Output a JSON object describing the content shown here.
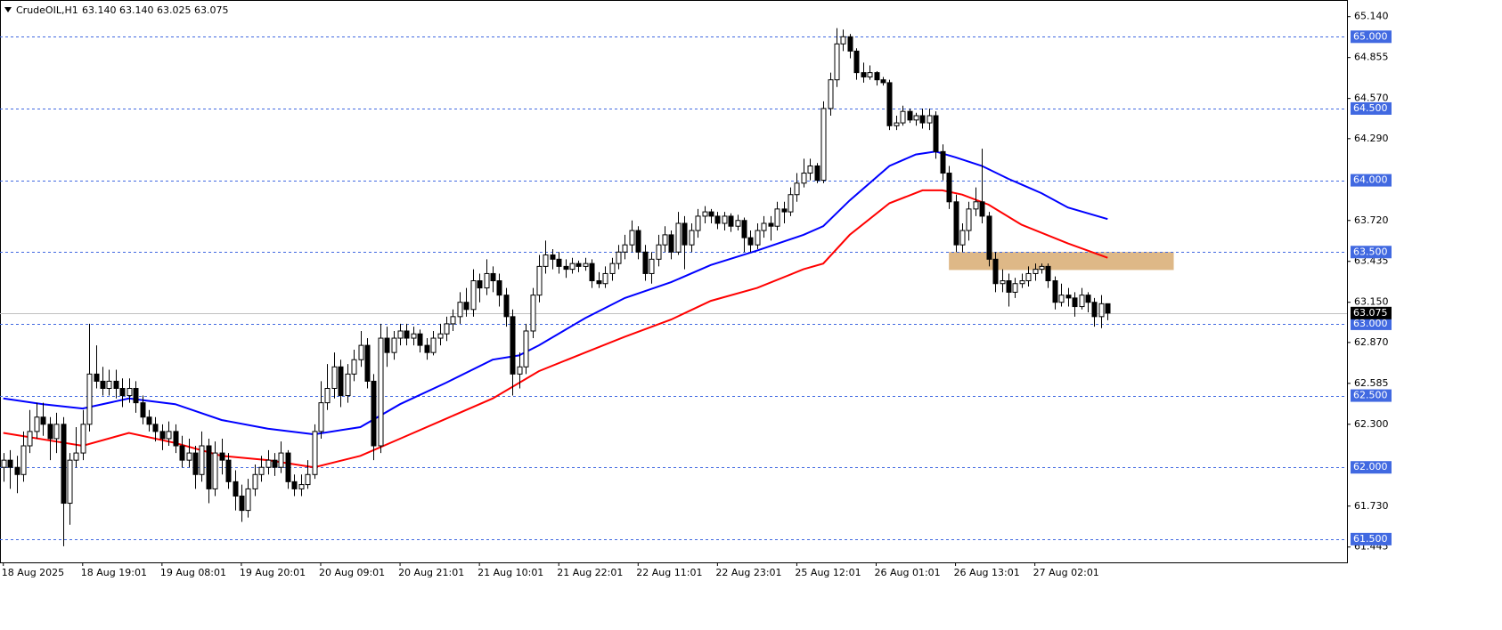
{
  "chart_data": {
    "type": "candlestick",
    "title": "CrudeOIL,H1",
    "subtitle": "63.140 63.140 63.025 63.075",
    "candles": [
      [
        62.0,
        62.1,
        61.9,
        62.05
      ],
      [
        62.05,
        62.12,
        61.85,
        62.0
      ],
      [
        62.0,
        62.08,
        61.82,
        61.95
      ],
      [
        61.95,
        62.25,
        61.9,
        62.15
      ],
      [
        62.15,
        62.4,
        62.1,
        62.25
      ],
      [
        62.25,
        62.45,
        62.2,
        62.35
      ],
      [
        62.35,
        62.45,
        62.22,
        62.3
      ],
      [
        62.3,
        62.35,
        62.05,
        62.2
      ],
      [
        62.2,
        62.38,
        62.1,
        62.3
      ],
      [
        62.3,
        62.35,
        61.45,
        61.75
      ],
      [
        61.75,
        62.1,
        61.6,
        62.05
      ],
      [
        62.05,
        62.28,
        62.0,
        62.1
      ],
      [
        62.1,
        62.4,
        62.05,
        62.3
      ],
      [
        62.3,
        63.0,
        62.25,
        62.65
      ],
      [
        62.65,
        62.85,
        62.55,
        62.6
      ],
      [
        62.6,
        62.7,
        62.5,
        62.55
      ],
      [
        62.55,
        62.68,
        62.5,
        62.6
      ],
      [
        62.6,
        62.68,
        62.48,
        62.55
      ],
      [
        62.55,
        62.62,
        62.42,
        62.5
      ],
      [
        62.5,
        62.62,
        62.45,
        62.55
      ],
      [
        62.55,
        62.6,
        62.38,
        62.45
      ],
      [
        62.45,
        62.5,
        62.3,
        62.35
      ],
      [
        62.35,
        62.4,
        62.25,
        62.3
      ],
      [
        62.3,
        62.35,
        62.18,
        62.25
      ],
      [
        62.25,
        62.3,
        62.12,
        62.2
      ],
      [
        62.2,
        62.32,
        62.15,
        62.25
      ],
      [
        62.25,
        62.3,
        62.1,
        62.15
      ],
      [
        62.15,
        62.22,
        62.0,
        62.05
      ],
      [
        62.05,
        62.2,
        62.0,
        62.1
      ],
      [
        62.1,
        62.15,
        61.85,
        61.95
      ],
      [
        61.95,
        62.25,
        61.9,
        62.15
      ],
      [
        62.15,
        62.2,
        61.75,
        61.85
      ],
      [
        61.85,
        62.18,
        61.8,
        62.1
      ],
      [
        62.1,
        62.2,
        61.95,
        62.05
      ],
      [
        62.05,
        62.1,
        61.85,
        61.9
      ],
      [
        61.9,
        61.98,
        61.7,
        61.8
      ],
      [
        61.8,
        61.88,
        61.62,
        61.7
      ],
      [
        61.7,
        61.92,
        61.65,
        61.85
      ],
      [
        61.85,
        62.02,
        61.8,
        61.95
      ],
      [
        61.95,
        62.08,
        61.9,
        62.0
      ],
      [
        62.0,
        62.12,
        61.95,
        62.05
      ],
      [
        62.05,
        62.1,
        61.94,
        62.0
      ],
      [
        62.0,
        62.18,
        61.96,
        62.1
      ],
      [
        62.1,
        62.12,
        61.85,
        61.9
      ],
      [
        61.9,
        61.95,
        61.8,
        61.85
      ],
      [
        61.85,
        61.95,
        61.8,
        61.88
      ],
      [
        61.88,
        62.05,
        61.85,
        61.95
      ],
      [
        61.95,
        62.3,
        61.92,
        62.25
      ],
      [
        62.25,
        62.6,
        62.2,
        62.45
      ],
      [
        62.45,
        62.72,
        62.4,
        62.55
      ],
      [
        62.55,
        62.8,
        62.48,
        62.7
      ],
      [
        62.7,
        62.75,
        62.42,
        62.5
      ],
      [
        62.5,
        62.72,
        62.45,
        62.65
      ],
      [
        62.65,
        62.82,
        62.6,
        62.75
      ],
      [
        62.75,
        62.95,
        62.7,
        62.85
      ],
      [
        62.85,
        62.9,
        62.55,
        62.6
      ],
      [
        62.6,
        62.65,
        62.05,
        62.15
      ],
      [
        62.15,
        63.0,
        62.1,
        62.9
      ],
      [
        62.9,
        62.98,
        62.7,
        62.8
      ],
      [
        62.8,
        62.95,
        62.75,
        62.9
      ],
      [
        62.9,
        63.0,
        62.85,
        62.95
      ],
      [
        62.95,
        63.0,
        62.85,
        62.9
      ],
      [
        62.9,
        62.98,
        62.85,
        62.93
      ],
      [
        62.93,
        62.96,
        62.8,
        62.85
      ],
      [
        62.85,
        62.9,
        62.75,
        62.8
      ],
      [
        62.8,
        62.95,
        62.78,
        62.9
      ],
      [
        62.9,
        63.0,
        62.85,
        62.93
      ],
      [
        62.93,
        63.05,
        62.88,
        63.0
      ],
      [
        63.0,
        63.1,
        62.95,
        63.05
      ],
      [
        63.05,
        63.22,
        63.0,
        63.15
      ],
      [
        63.15,
        63.25,
        63.05,
        63.1
      ],
      [
        63.1,
        63.38,
        63.05,
        63.3
      ],
      [
        63.3,
        63.35,
        63.15,
        63.25
      ],
      [
        63.25,
        63.45,
        63.2,
        63.35
      ],
      [
        63.35,
        63.4,
        63.22,
        63.3
      ],
      [
        63.3,
        63.35,
        63.12,
        63.2
      ],
      [
        63.2,
        63.25,
        62.98,
        63.05
      ],
      [
        63.05,
        63.1,
        62.5,
        62.65
      ],
      [
        62.65,
        62.8,
        62.55,
        62.7
      ],
      [
        62.7,
        63.0,
        62.65,
        62.95
      ],
      [
        62.95,
        63.25,
        62.9,
        63.2
      ],
      [
        63.2,
        63.48,
        63.15,
        63.4
      ],
      [
        63.4,
        63.58,
        63.35,
        63.48
      ],
      [
        63.48,
        63.52,
        63.38,
        63.45
      ],
      [
        63.45,
        63.5,
        63.35,
        63.4
      ],
      [
        63.4,
        63.45,
        63.32,
        63.38
      ],
      [
        63.38,
        63.46,
        63.35,
        63.42
      ],
      [
        63.42,
        63.44,
        63.36,
        63.4
      ],
      [
        63.4,
        63.46,
        63.37,
        63.42
      ],
      [
        63.42,
        63.45,
        63.25,
        63.3
      ],
      [
        63.3,
        63.36,
        63.25,
        63.28
      ],
      [
        63.28,
        63.4,
        63.25,
        63.35
      ],
      [
        63.35,
        63.46,
        63.3,
        63.42
      ],
      [
        63.42,
        63.55,
        63.38,
        63.5
      ],
      [
        63.5,
        63.62,
        63.45,
        63.55
      ],
      [
        63.55,
        63.72,
        63.5,
        63.65
      ],
      [
        63.65,
        63.68,
        63.45,
        63.5
      ],
      [
        63.5,
        63.55,
        63.3,
        63.35
      ],
      [
        63.35,
        63.5,
        63.28,
        63.45
      ],
      [
        63.45,
        63.62,
        63.4,
        63.55
      ],
      [
        63.55,
        63.68,
        63.5,
        63.62
      ],
      [
        63.62,
        63.65,
        63.45,
        63.5
      ],
      [
        63.5,
        63.78,
        63.48,
        63.7
      ],
      [
        63.7,
        63.75,
        63.38,
        63.55
      ],
      [
        63.55,
        63.7,
        63.5,
        63.65
      ],
      [
        63.65,
        63.8,
        63.6,
        63.75
      ],
      [
        63.75,
        63.82,
        63.7,
        63.78
      ],
      [
        63.78,
        63.8,
        63.7,
        63.75
      ],
      [
        63.75,
        63.78,
        63.66,
        63.7
      ],
      [
        63.7,
        63.78,
        63.65,
        63.75
      ],
      [
        63.75,
        63.77,
        63.64,
        63.68
      ],
      [
        63.68,
        63.76,
        63.65,
        63.72
      ],
      [
        63.72,
        63.74,
        63.5,
        63.6
      ],
      [
        63.6,
        63.65,
        63.5,
        63.55
      ],
      [
        63.55,
        63.7,
        63.52,
        63.65
      ],
      [
        63.65,
        63.75,
        63.6,
        63.7
      ],
      [
        63.7,
        63.75,
        63.58,
        63.68
      ],
      [
        63.68,
        63.85,
        63.65,
        63.8
      ],
      [
        63.8,
        63.85,
        63.7,
        63.78
      ],
      [
        63.78,
        63.95,
        63.75,
        63.9
      ],
      [
        63.9,
        64.05,
        63.85,
        63.98
      ],
      [
        63.98,
        64.15,
        63.95,
        64.05
      ],
      [
        64.05,
        64.15,
        64.0,
        64.1
      ],
      [
        64.1,
        64.12,
        63.98,
        64.0
      ],
      [
        64.0,
        64.55,
        63.98,
        64.5
      ],
      [
        64.5,
        64.75,
        64.45,
        64.7
      ],
      [
        64.7,
        65.06,
        64.65,
        64.95
      ],
      [
        64.95,
        65.05,
        64.9,
        65.0
      ],
      [
        65.0,
        65.02,
        64.85,
        64.9
      ],
      [
        64.9,
        64.92,
        64.7,
        64.75
      ],
      [
        64.75,
        64.82,
        64.68,
        64.72
      ],
      [
        64.72,
        64.8,
        64.7,
        64.75
      ],
      [
        64.75,
        64.76,
        64.66,
        64.7
      ],
      [
        64.7,
        64.72,
        64.66,
        64.68
      ],
      [
        64.68,
        64.7,
        64.35,
        64.38
      ],
      [
        64.38,
        64.45,
        64.35,
        64.4
      ],
      [
        64.4,
        64.52,
        64.38,
        64.48
      ],
      [
        64.48,
        64.5,
        64.4,
        64.42
      ],
      [
        64.42,
        64.47,
        64.38,
        64.45
      ],
      [
        64.45,
        64.5,
        64.36,
        64.4
      ],
      [
        64.4,
        64.5,
        64.35,
        64.45
      ],
      [
        64.45,
        64.48,
        64.15,
        64.2
      ],
      [
        64.2,
        64.25,
        64.0,
        64.05
      ],
      [
        64.05,
        64.1,
        63.8,
        63.85
      ],
      [
        63.85,
        63.9,
        63.5,
        63.55
      ],
      [
        63.55,
        63.7,
        63.5,
        63.65
      ],
      [
        63.65,
        63.85,
        63.58,
        63.8
      ],
      [
        63.8,
        63.95,
        63.75,
        63.85
      ],
      [
        63.85,
        64.22,
        63.7,
        63.75
      ],
      [
        63.75,
        63.78,
        63.4,
        63.45
      ],
      [
        63.45,
        63.5,
        63.22,
        63.28
      ],
      [
        63.28,
        63.38,
        63.22,
        63.3
      ],
      [
        63.3,
        63.35,
        63.12,
        63.22
      ],
      [
        63.22,
        63.32,
        63.18,
        63.28
      ],
      [
        63.28,
        63.35,
        63.25,
        63.3
      ],
      [
        63.3,
        63.4,
        63.26,
        63.35
      ],
      [
        63.35,
        63.42,
        63.3,
        63.38
      ],
      [
        63.38,
        63.42,
        63.35,
        63.4
      ],
      [
        63.4,
        63.42,
        63.25,
        63.3
      ],
      [
        63.3,
        63.33,
        63.1,
        63.15
      ],
      [
        63.15,
        63.28,
        63.12,
        63.2
      ],
      [
        63.2,
        63.25,
        63.12,
        63.18
      ],
      [
        63.18,
        63.22,
        63.05,
        63.12
      ],
      [
        63.12,
        63.25,
        63.1,
        63.2
      ],
      [
        63.2,
        63.22,
        63.08,
        63.15
      ],
      [
        63.15,
        63.18,
        62.98,
        63.05
      ],
      [
        63.05,
        63.2,
        62.97,
        63.14
      ],
      [
        63.14,
        63.14,
        63.025,
        63.075
      ]
    ],
    "series": [
      {
        "color": "#0000ff",
        "x": [
          0,
          6,
          12,
          19,
          26,
          33,
          40,
          47,
          54,
          60,
          67,
          74,
          78,
          81,
          88,
          94,
          101,
          107,
          114,
          121,
          124,
          128,
          134,
          138,
          141,
          144,
          148,
          152,
          157,
          161,
          167
        ],
        "values": [
          62.48,
          62.44,
          62.41,
          62.48,
          62.44,
          62.33,
          62.27,
          62.23,
          62.28,
          62.44,
          62.59,
          62.75,
          62.78,
          62.85,
          63.04,
          63.18,
          63.29,
          63.41,
          63.51,
          63.62,
          63.68,
          63.86,
          64.1,
          64.18,
          64.2,
          64.16,
          64.1,
          64.01,
          63.91,
          63.81,
          63.73
        ]
      },
      {
        "color": "#ff0000",
        "x": [
          0,
          8,
          12,
          19,
          26,
          33,
          40,
          47,
          54,
          60,
          67,
          74,
          81,
          88,
          94,
          101,
          107,
          114,
          121,
          124,
          128,
          134,
          139,
          142,
          145,
          149,
          154,
          161,
          167
        ],
        "values": [
          62.24,
          62.18,
          62.15,
          62.24,
          62.17,
          62.08,
          62.05,
          62.0,
          62.08,
          62.2,
          62.34,
          62.48,
          62.67,
          62.8,
          62.91,
          63.03,
          63.16,
          63.25,
          63.38,
          63.42,
          63.62,
          63.84,
          63.93,
          63.93,
          63.9,
          63.83,
          63.69,
          63.56,
          63.46
        ]
      }
    ],
    "zone": {
      "x": [
        143,
        177
      ],
      "y": [
        63.375,
        63.5
      ],
      "color": "#deb887"
    },
    "xlim": [
      -0.5,
      203.2
    ],
    "ylim": [
      61.338,
      65.256
    ],
    "xticks": [
      {
        "value": 0,
        "label": "18 Aug 2025"
      },
      {
        "value": 12,
        "label": "18 Aug 19:01"
      },
      {
        "value": 24,
        "label": "19 Aug 08:01"
      },
      {
        "value": 36,
        "label": "19 Aug 20:01"
      },
      {
        "value": 48,
        "label": "20 Aug 09:01"
      },
      {
        "value": 60,
        "label": "20 Aug 21:01"
      },
      {
        "value": 72,
        "label": "21 Aug 10:01"
      },
      {
        "value": 84,
        "label": "21 Aug 22:01"
      },
      {
        "value": 96,
        "label": "22 Aug 11:01"
      },
      {
        "value": 108,
        "label": "22 Aug 23:01"
      },
      {
        "value": 120,
        "label": "25 Aug 12:01"
      },
      {
        "value": 132,
        "label": "26 Aug 01:01"
      },
      {
        "value": 144,
        "label": "26 Aug 13:01"
      },
      {
        "value": 156,
        "label": "27 Aug 02:01"
      }
    ],
    "yticks": [
      {
        "value": 65.14,
        "label": "65.140"
      },
      {
        "value": 64.855,
        "label": "64.855"
      },
      {
        "value": 64.57,
        "label": "64.570"
      },
      {
        "value": 64.29,
        "label": "64.290"
      },
      {
        "value": 63.72,
        "label": "63.720"
      },
      {
        "value": 63.435,
        "label": "63.435"
      },
      {
        "value": 63.15,
        "label": "63.150"
      },
      {
        "value": 62.87,
        "label": "62.870"
      },
      {
        "value": 62.585,
        "label": "62.585"
      },
      {
        "value": 62.3,
        "label": "62.300"
      },
      {
        "value": 61.73,
        "label": "61.730"
      },
      {
        "value": 61.445,
        "label": "61.445"
      }
    ],
    "levels": [
      {
        "value": 65,
        "label": "65.000"
      },
      {
        "value": 64.5,
        "label": "64.500"
      },
      {
        "value": 64,
        "label": "64.000"
      },
      {
        "value": 63.5,
        "label": "63.500"
      },
      {
        "value": 63,
        "label": "63.000"
      },
      {
        "value": 62.5,
        "label": "62.500"
      },
      {
        "value": 62,
        "label": "62.000"
      },
      {
        "value": 61.5,
        "label": "61.500"
      }
    ],
    "level_color": "#4169e1",
    "current_price": {
      "value": 63.075,
      "label": "63.075"
    }
  }
}
